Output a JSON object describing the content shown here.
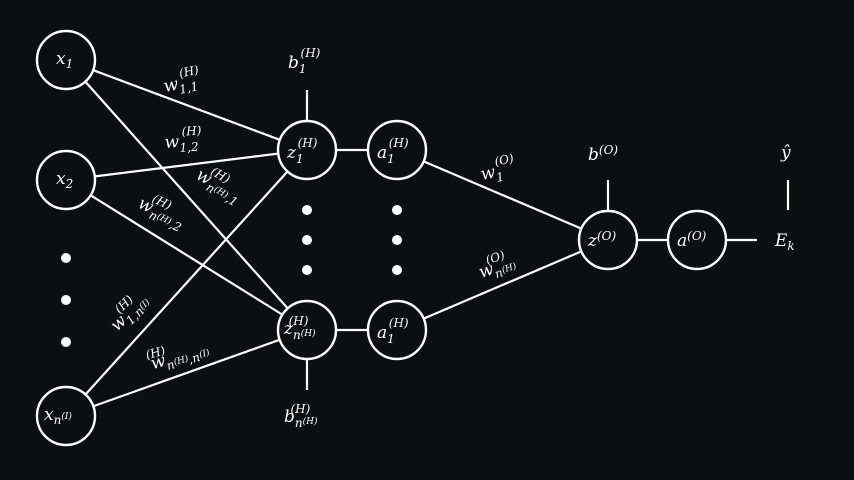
{
  "inputs": {
    "x1": {
      "base": "x",
      "sub": "1"
    },
    "x2": {
      "base": "x",
      "sub": "2"
    },
    "xn": {
      "base": "x",
      "sub": "n",
      "subsup": "(I)"
    }
  },
  "hidden": {
    "z1": {
      "base": "z",
      "sub": "1",
      "sup": "(H)"
    },
    "zn": {
      "base": "z",
      "sub": "n",
      "subsup": "(H)",
      "sup": "(H)"
    },
    "a1_top": {
      "base": "a",
      "sub": "1",
      "sup": "(H)"
    },
    "a1_bottom": {
      "base": "a",
      "sub": "1",
      "sup": "(H)"
    }
  },
  "output": {
    "z": {
      "base": "z",
      "sup": "(O)"
    },
    "a": {
      "base": "a",
      "sup": "(O)"
    },
    "error": {
      "base": "E",
      "sub": "k"
    },
    "yhat": {
      "base": "ŷ"
    }
  },
  "biases": {
    "b1": {
      "base": "b",
      "sub": "1",
      "sup": "(H)"
    },
    "bn": {
      "base": "b",
      "sub": "n",
      "subsup": "(H)",
      "sup": "(H)"
    },
    "bo": {
      "base": "b",
      "sup": "(O)"
    }
  },
  "weights": {
    "w11": {
      "base": "w",
      "sub": "1,1",
      "sup": "(H)"
    },
    "w12": {
      "base": "w",
      "sub": "1,2",
      "sup": "(H)"
    },
    "wn1": {
      "base": "w",
      "sub": "n",
      "subsup": "(H)",
      "sub2": ",1",
      "sup": "(H)"
    },
    "wn2": {
      "base": "w",
      "sub": "n",
      "subsup": "(H)",
      "sub2": ",2",
      "sup": "(H)"
    },
    "w1n": {
      "base": "w",
      "sub": "1,n",
      "subsup": "(I)",
      "sup": "(H)"
    },
    "wnn": {
      "base": "w",
      "sub": "n",
      "subsup": "(H)",
      "sub2": ",n",
      "subsup2": "(I)",
      "sup": "(H)"
    },
    "wo1": {
      "base": "w",
      "sub": "1",
      "sup": "(O)"
    },
    "won": {
      "base": "w",
      "sub": "n",
      "subsup": "(H)",
      "sup": "(O)"
    }
  }
}
